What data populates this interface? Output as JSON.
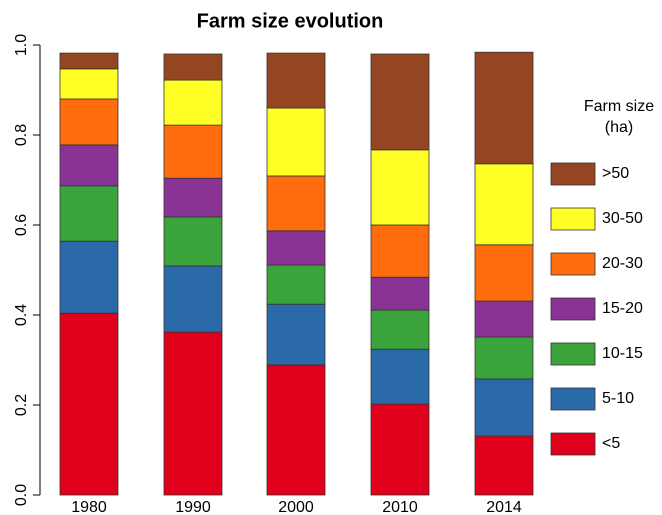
{
  "chart_data": {
    "type": "stacked_bar",
    "title": "Farm size evolution",
    "categories": [
      "1980",
      "1990",
      "2000",
      "2010",
      "2014"
    ],
    "series": [
      {
        "name": "<5",
        "color": "#e0001b",
        "values": [
          0.404,
          0.362,
          0.289,
          0.202,
          0.131
        ]
      },
      {
        "name": "5-10",
        "color": "#2b6aa8",
        "values": [
          0.16,
          0.147,
          0.135,
          0.122,
          0.127
        ]
      },
      {
        "name": "10-15",
        "color": "#3ba33b",
        "values": [
          0.123,
          0.109,
          0.087,
          0.087,
          0.093
        ]
      },
      {
        "name": "15-20",
        "color": "#893395",
        "values": [
          0.091,
          0.086,
          0.076,
          0.073,
          0.08
        ]
      },
      {
        "name": "20-30",
        "color": "#ff6c0e",
        "values": [
          0.102,
          0.118,
          0.122,
          0.116,
          0.125
        ]
      },
      {
        "name": "30-50",
        "color": "#ffff26",
        "values": [
          0.067,
          0.1,
          0.151,
          0.167,
          0.18
        ]
      },
      {
        "name": ">50",
        "color": "#944522",
        "values": [
          0.035,
          0.058,
          0.122,
          0.213,
          0.248
        ]
      }
    ],
    "ylim": [
      0,
      1
    ],
    "yticks": [
      {
        "value": 0,
        "label": "0.0"
      },
      0.2,
      0.4,
      0.6,
      0.8,
      {
        "value": 1,
        "label": "1.0"
      }
    ],
    "legend_title": [
      "Farm size",
      "(ha)"
    ],
    "legend": "right"
  }
}
